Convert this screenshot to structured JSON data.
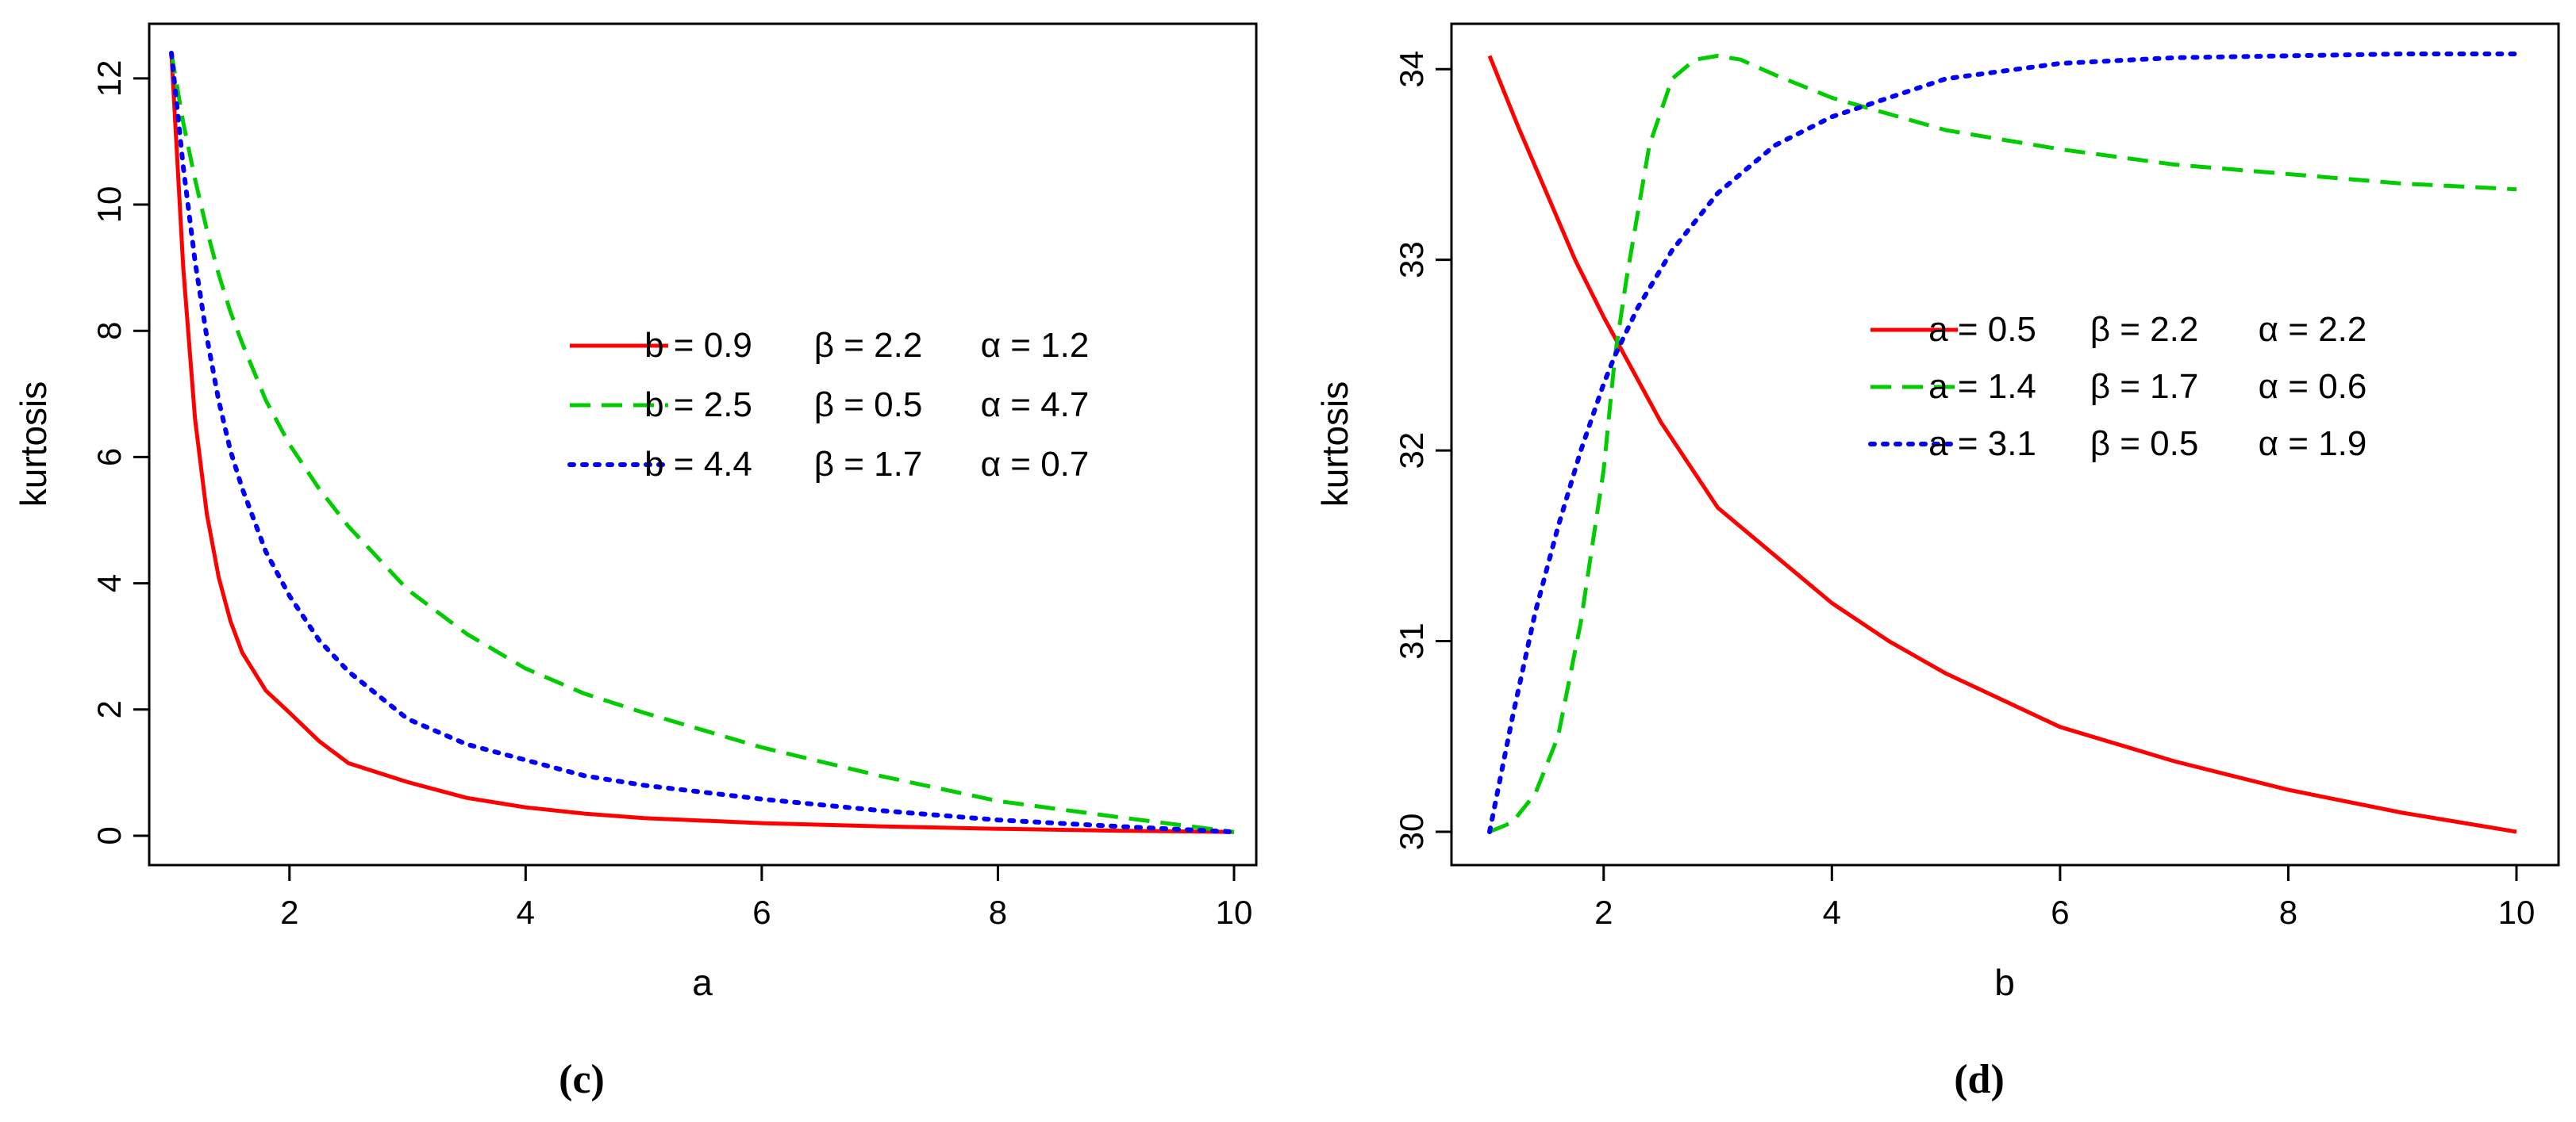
{
  "chart_data": [
    {
      "type": "line",
      "panel_label": "(c)",
      "title": "",
      "xlabel": "a",
      "ylabel": "kurtosis",
      "xlim": [
        1,
        10
      ],
      "ylim": [
        0,
        12.4
      ],
      "xticks": [
        2,
        4,
        6,
        8,
        10
      ],
      "yticks": [
        0,
        2,
        4,
        6,
        8,
        10,
        12
      ],
      "grid": false,
      "legend_position": "center-right",
      "x": [
        1.0,
        1.1,
        1.2,
        1.3,
        1.4,
        1.5,
        1.6,
        1.8,
        2.0,
        2.25,
        2.5,
        3.0,
        3.5,
        4.0,
        4.5,
        5.0,
        6.0,
        7.0,
        8.0,
        9.0,
        10.0
      ],
      "series": [
        {
          "name": "b = 0.9   β = 2.2   α = 1.2",
          "legend": {
            "p1": "b = 0.9",
            "p2": "β = 2.2",
            "p3": "α = 1.2"
          },
          "color": "#ff0000",
          "style": "solid",
          "values": [
            12.4,
            9.0,
            6.6,
            5.1,
            4.1,
            3.4,
            2.9,
            2.3,
            1.95,
            1.5,
            1.15,
            0.85,
            0.6,
            0.45,
            0.35,
            0.28,
            0.2,
            0.15,
            0.11,
            0.08,
            0.06
          ]
        },
        {
          "name": "b = 2.5   β = 0.5   α = 4.7",
          "legend": {
            "p1": "b = 2.5",
            "p2": "β = 0.5",
            "p3": "α = 4.7"
          },
          "color": "#00cc00",
          "style": "dashed",
          "values": [
            12.4,
            11.3,
            10.4,
            9.6,
            8.9,
            8.3,
            7.8,
            6.9,
            6.2,
            5.5,
            4.9,
            3.9,
            3.2,
            2.65,
            2.25,
            1.95,
            1.4,
            0.95,
            0.55,
            0.3,
            0.06
          ]
        },
        {
          "name": "b = 4.4   β = 1.7   α = 0.7",
          "legend": {
            "p1": "b = 4.4",
            "p2": "β = 1.7",
            "p3": "α = 0.7"
          },
          "color": "#0000ff",
          "style": "dotted",
          "values": [
            12.4,
            10.6,
            9.1,
            7.9,
            6.9,
            6.1,
            5.5,
            4.5,
            3.8,
            3.1,
            2.6,
            1.85,
            1.45,
            1.2,
            0.95,
            0.8,
            0.58,
            0.4,
            0.25,
            0.15,
            0.06
          ]
        }
      ]
    },
    {
      "type": "line",
      "panel_label": "(d)",
      "title": "",
      "xlabel": "b",
      "ylabel": "kurtosis",
      "xlim": [
        1,
        10
      ],
      "ylim": [
        30,
        34.08
      ],
      "xticks": [
        2,
        4,
        6,
        8,
        10
      ],
      "yticks": [
        30,
        31,
        32,
        33,
        34
      ],
      "grid": false,
      "legend_position": "center-right",
      "series": [
        {
          "name": "a = 0.5   β = 2.2   α = 2.2",
          "legend": {
            "p1": "a = 0.5",
            "p2": "β = 2.2",
            "p3": "α = 2.2"
          },
          "color": "#ff0000",
          "style": "solid",
          "x": [
            1.0,
            1.25,
            1.5,
            1.75,
            2.0,
            2.5,
            3.0,
            3.5,
            4.0,
            4.5,
            5.0,
            6.0,
            7.0,
            8.0,
            9.0,
            10.0
          ],
          "values": [
            34.07,
            33.7,
            33.35,
            33.0,
            32.7,
            32.15,
            31.7,
            31.45,
            31.2,
            31.0,
            30.83,
            30.55,
            30.37,
            30.22,
            30.1,
            30.0
          ]
        },
        {
          "name": "a = 1.4   β = 1.7   α = 0.6",
          "legend": {
            "p1": "a = 1.4",
            "p2": "β = 1.7",
            "p3": "α = 0.6"
          },
          "color": "#00cc00",
          "style": "dashed",
          "x": [
            1.0,
            1.2,
            1.4,
            1.6,
            1.8,
            2.0,
            2.1,
            2.2,
            2.4,
            2.6,
            2.8,
            3.0,
            3.2,
            3.5,
            4.0,
            5.0,
            6.0,
            7.0,
            8.0,
            9.0,
            10.0
          ],
          "values": [
            30.0,
            30.05,
            30.2,
            30.5,
            31.1,
            31.9,
            32.5,
            32.9,
            33.6,
            33.95,
            34.05,
            34.07,
            34.05,
            33.97,
            33.85,
            33.68,
            33.58,
            33.5,
            33.45,
            33.4,
            33.37
          ]
        },
        {
          "name": "a = 3.1   β = 0.5   α = 1.9",
          "legend": {
            "p1": "a = 3.1",
            "p2": "β = 0.5",
            "p3": "α = 1.9"
          },
          "color": "#0000ff",
          "style": "dotted",
          "x": [
            1.0,
            1.2,
            1.4,
            1.6,
            1.8,
            2.0,
            2.1,
            2.3,
            2.6,
            3.0,
            3.5,
            4.0,
            4.5,
            5.0,
            6.0,
            7.0,
            8.0,
            9.0,
            10.0
          ],
          "values": [
            30.0,
            30.6,
            31.15,
            31.6,
            32.0,
            32.35,
            32.5,
            32.75,
            33.05,
            33.35,
            33.6,
            33.75,
            33.85,
            33.95,
            34.03,
            34.06,
            34.07,
            34.08,
            34.08
          ]
        }
      ]
    }
  ]
}
